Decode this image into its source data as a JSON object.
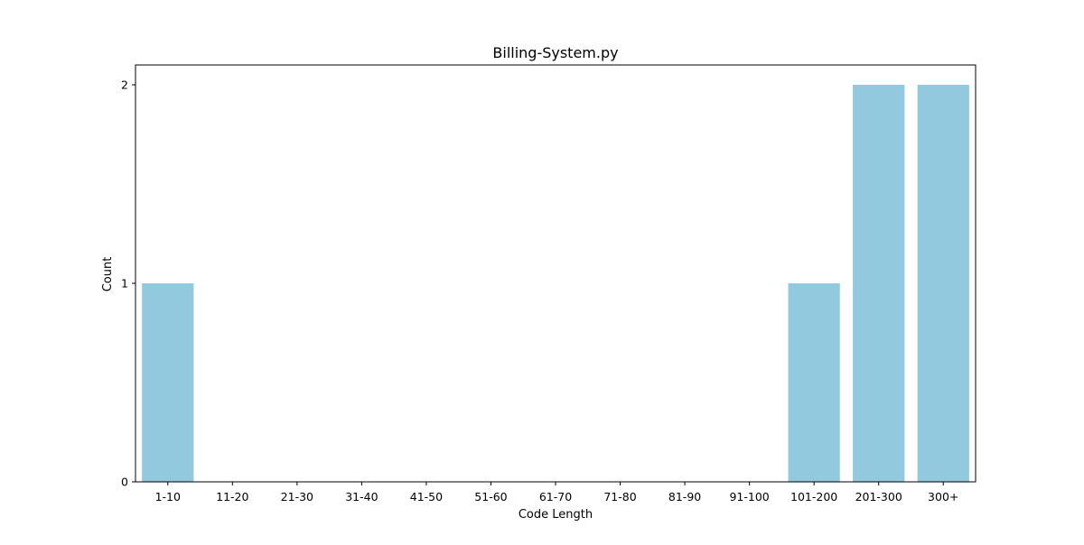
{
  "chart_data": {
    "type": "bar",
    "title": "Billing-System.py",
    "xlabel": "Code Length",
    "ylabel": "Count",
    "categories": [
      "1-10",
      "11-20",
      "21-30",
      "31-40",
      "41-50",
      "51-60",
      "61-70",
      "71-80",
      "81-90",
      "91-100",
      "101-200",
      "201-300",
      "300+"
    ],
    "values": [
      1,
      0,
      0,
      0,
      0,
      0,
      0,
      0,
      0,
      0,
      1,
      2,
      2
    ],
    "yticks": [
      "0",
      "1",
      "2"
    ],
    "ylim": [
      0,
      2.1
    ],
    "grid": false,
    "bar_color": "#92c9de"
  }
}
